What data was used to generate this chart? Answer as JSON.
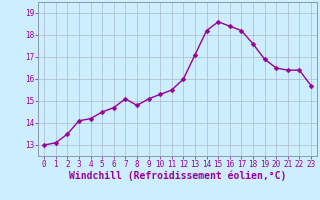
{
  "x": [
    0,
    1,
    2,
    3,
    4,
    5,
    6,
    7,
    8,
    9,
    10,
    11,
    12,
    13,
    14,
    15,
    16,
    17,
    18,
    19,
    20,
    21,
    22,
    23
  ],
  "y": [
    13.0,
    13.1,
    13.5,
    14.1,
    14.2,
    14.5,
    14.7,
    15.1,
    14.8,
    15.1,
    15.3,
    15.5,
    16.0,
    17.1,
    18.2,
    18.6,
    18.4,
    18.2,
    17.6,
    16.9,
    16.5,
    16.4,
    16.4,
    15.7
  ],
  "line_color": "#990099",
  "marker": "D",
  "markersize": 2.5,
  "linewidth": 1.0,
  "background_color": "#cceeff",
  "grid_color": "#aabbcc",
  "xlabel": "Windchill (Refroidissement éolien,°C)",
  "xlabel_color": "#990099",
  "ylim": [
    12.5,
    19.5
  ],
  "xlim": [
    -0.5,
    23.5
  ],
  "yticks": [
    13,
    14,
    15,
    16,
    17,
    18,
    19
  ],
  "xticks": [
    0,
    1,
    2,
    3,
    4,
    5,
    6,
    7,
    8,
    9,
    10,
    11,
    12,
    13,
    14,
    15,
    16,
    17,
    18,
    19,
    20,
    21,
    22,
    23
  ],
  "tick_color": "#990099",
  "tick_fontsize": 5.5,
  "xlabel_fontsize": 7.0,
  "spine_color": "#8899aa"
}
